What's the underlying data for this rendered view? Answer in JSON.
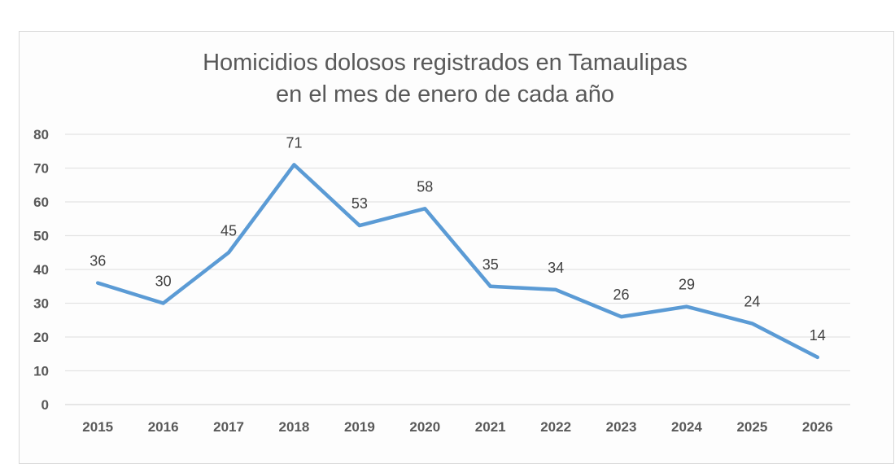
{
  "chart_data": {
    "type": "line",
    "title": [
      "Homicidios dolosos registrados en Tamaulipas",
      "en el mes de enero de cada año"
    ],
    "categories": [
      "2015",
      "2016",
      "2017",
      "2018",
      "2019",
      "2020",
      "2021",
      "2022",
      "2023",
      "2024",
      "2025",
      "2026"
    ],
    "values": [
      36,
      30,
      45,
      71,
      53,
      58,
      35,
      34,
      26,
      29,
      24,
      14
    ],
    "ylim": [
      0,
      80
    ],
    "yticks": [
      0,
      10,
      20,
      30,
      40,
      50,
      60,
      70,
      80
    ],
    "grid": true,
    "data_labels": true,
    "line_color": "#5b9bd5"
  }
}
